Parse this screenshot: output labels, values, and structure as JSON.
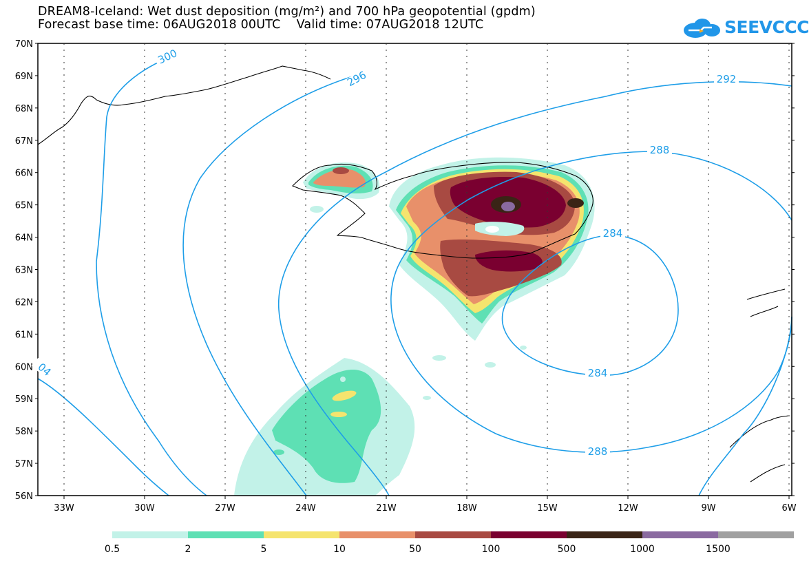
{
  "header": {
    "title_line1": "DREAM8-Iceland: Wet dust deposition (mg/m²) and 700 hPa geopotential (gpdm)",
    "title_line2": "Forecast base time: 06AUG2018 00UTC    Valid time: 07AUG2018 12UTC"
  },
  "logo": {
    "text": "SEEVCCC",
    "icon": "cloud-icon",
    "color": "#2196e8"
  },
  "map": {
    "lat_labels": [
      "70N",
      "69N",
      "68N",
      "67N",
      "66N",
      "65N",
      "64N",
      "63N",
      "62N",
      "61N",
      "60N",
      "59N",
      "58N",
      "57N",
      "56N"
    ],
    "lon_labels": [
      "33W",
      "30W",
      "27W",
      "24W",
      "21W",
      "18W",
      "15W",
      "12W",
      "9W",
      "6W"
    ],
    "contour_labels": [
      {
        "text": "300",
        "contour": "300"
      },
      {
        "text": "296",
        "contour": "296"
      },
      {
        "text": "292",
        "contour": "292"
      },
      {
        "text": "288",
        "contour": "288-north"
      },
      {
        "text": "284",
        "contour": "284-north"
      },
      {
        "text": "284",
        "contour": "284-south"
      },
      {
        "text": "288",
        "contour": "288-south"
      },
      {
        "text": "04",
        "contour": "304-edge"
      }
    ],
    "contour_color": "#1e9ee8"
  },
  "legend": {
    "colors": [
      "#c2f2e8",
      "#5ee0b4",
      "#f5e46e",
      "#e8906a",
      "#a84a42",
      "#7a0030",
      "#3a2416",
      "#8a6aa0",
      "#a0a0a0"
    ],
    "labels": [
      "0.5",
      "2",
      "5",
      "10",
      "50",
      "100",
      "500",
      "1000",
      "1500"
    ]
  }
}
